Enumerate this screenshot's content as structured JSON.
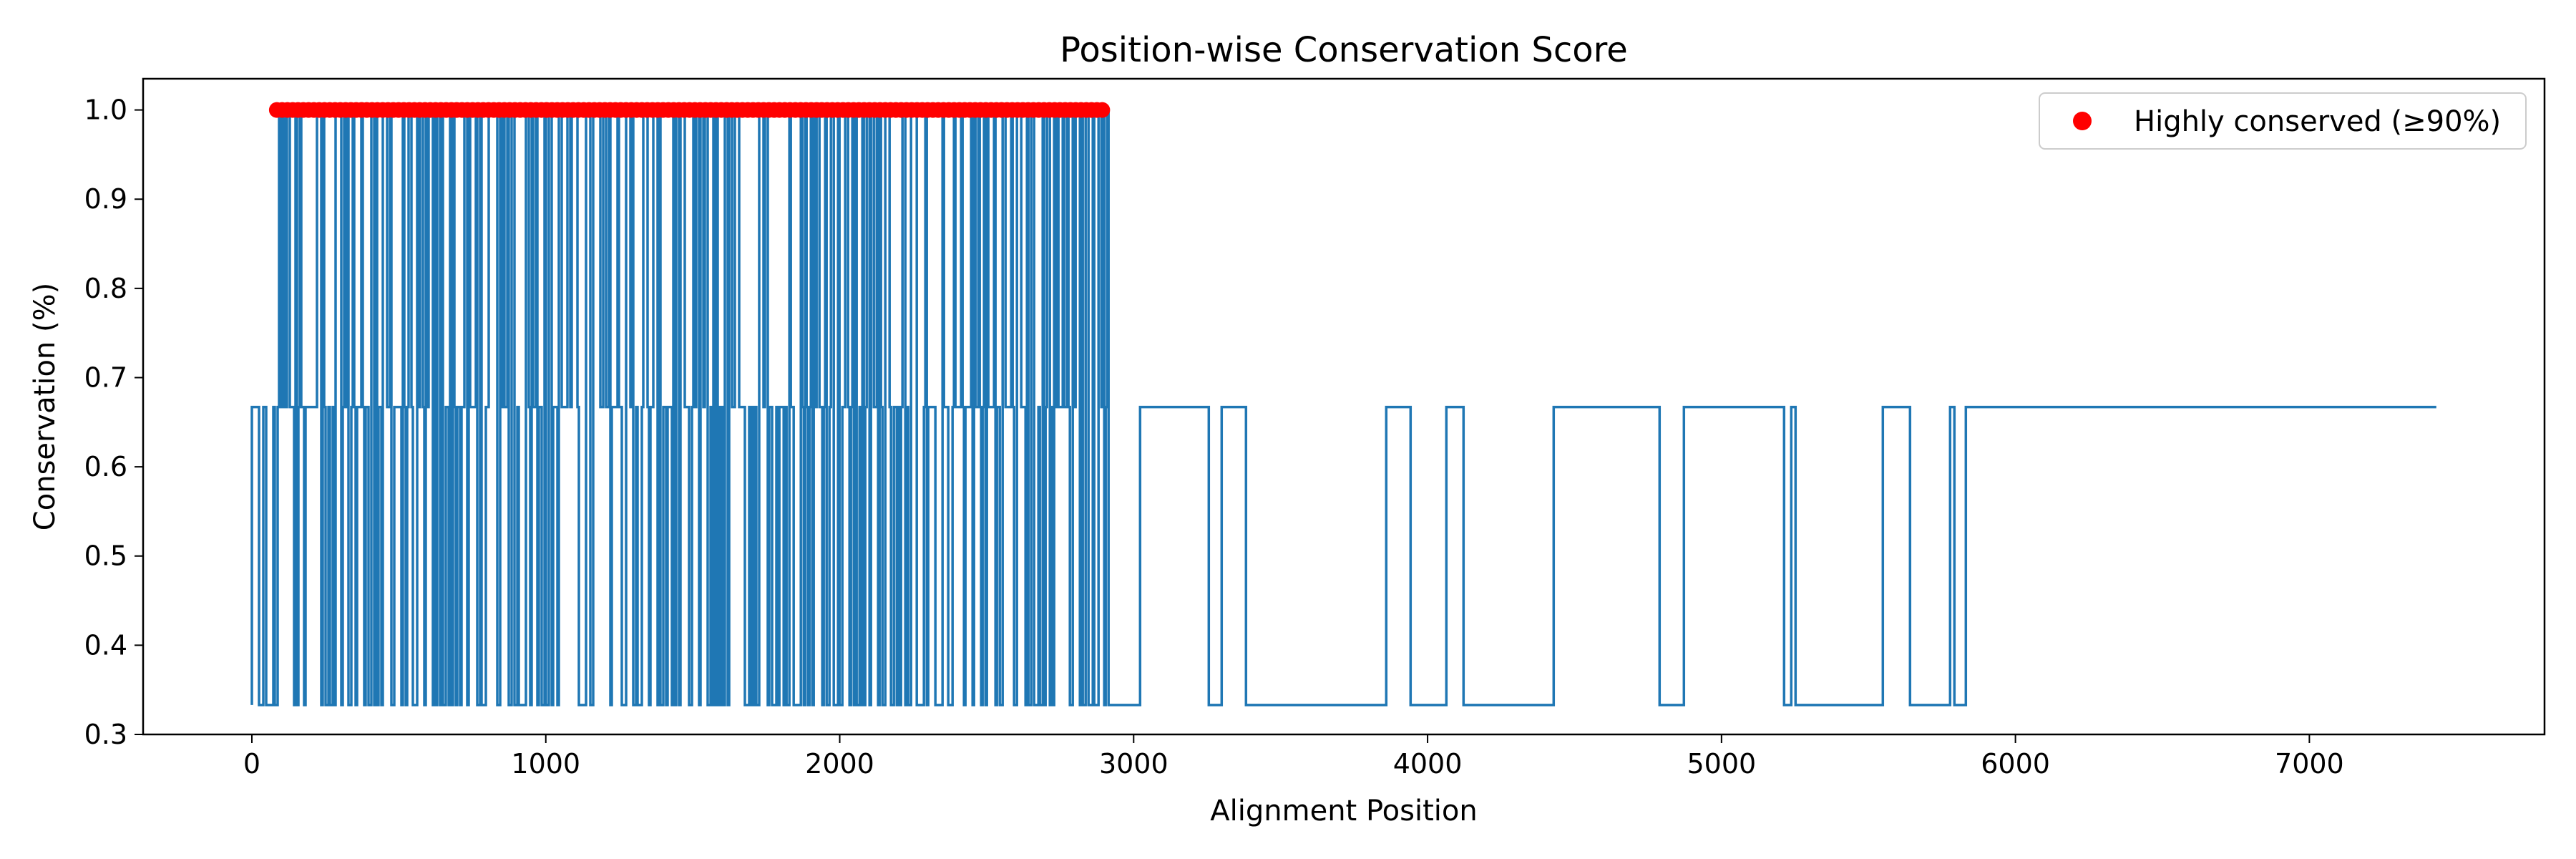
{
  "chart_data": {
    "type": "line",
    "title": "Position-wise Conservation Score",
    "xlabel": "Alignment Position",
    "ylabel": "Conservation (%)",
    "xlim": [
      -370,
      7800
    ],
    "ylim": [
      0.3,
      1.035
    ],
    "xticks": [
      0,
      1000,
      2000,
      3000,
      4000,
      5000,
      6000,
      7000
    ],
    "yticks": [
      0.3,
      0.4,
      0.5,
      0.6,
      0.7,
      0.8,
      0.9,
      1.0
    ],
    "ytick_labels": [
      "0.3",
      "0.4",
      "0.5",
      "0.6",
      "0.7",
      "0.8",
      "0.9",
      "1.0"
    ],
    "grid": false,
    "legend_position": "top-right",
    "series": [
      {
        "kind": "line",
        "color": "#1f77b4",
        "levels": [
          0.333,
          0.667,
          1.0
        ],
        "segments": [
          {
            "x_start": 0,
            "x_end": 90,
            "levels": [
              0.333,
              0.667
            ],
            "density": 0.9
          },
          {
            "x_start": 90,
            "x_end": 1780,
            "levels": [
              0.333,
              0.667,
              1.0
            ],
            "density": 0.95
          },
          {
            "x_start": 1780,
            "x_end": 2910,
            "levels": [
              0.333,
              0.667,
              1.0
            ],
            "density": 0.95
          },
          {
            "x_start": 2910,
            "x_end": 5830,
            "levels": [
              0.333,
              0.667
            ],
            "density": 0.03
          },
          {
            "x_start": 5830,
            "x_end": 7430,
            "levels": [
              0.667
            ],
            "density": 0
          }
        ]
      },
      {
        "kind": "scatter",
        "name": "Highly conserved (≥90%)",
        "color": "#ff0000",
        "y": 1.0,
        "x_range": [
          85,
          2900
        ]
      }
    ]
  }
}
